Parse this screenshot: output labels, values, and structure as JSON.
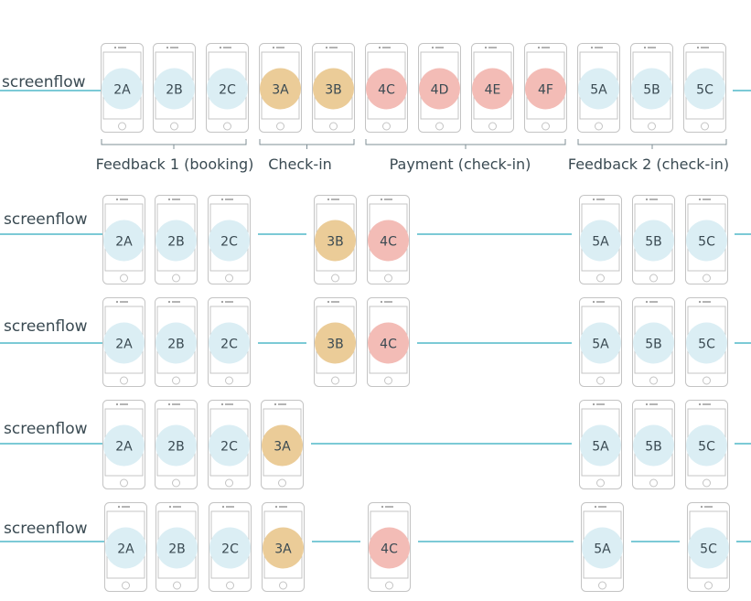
{
  "colors": {
    "line": "#2eaabd",
    "phone_stroke": "#c4c4c4",
    "bracket": "#7f8f96",
    "text": "#3a4a52",
    "feedback": "#dbeef4",
    "checkin": "#ebcc98",
    "payment": "#f3bcb6"
  },
  "groups": [
    {
      "label": "Feedback 1 (booking)"
    },
    {
      "label": "Check-in"
    },
    {
      "label": "Payment (check-in)"
    },
    {
      "label": "Feedback 2 (check-in)"
    }
  ],
  "rows": [
    {
      "label": "screenflow",
      "screens": [
        {
          "id": "2A",
          "type": "feedback"
        },
        {
          "id": "2B",
          "type": "feedback"
        },
        {
          "id": "2C",
          "type": "feedback"
        },
        {
          "id": "3A",
          "type": "checkin"
        },
        {
          "id": "3B",
          "type": "checkin"
        },
        {
          "id": "4C",
          "type": "payment"
        },
        {
          "id": "4D",
          "type": "payment"
        },
        {
          "id": "4E",
          "type": "payment"
        },
        {
          "id": "4F",
          "type": "payment"
        },
        {
          "id": "5A",
          "type": "feedback"
        },
        {
          "id": "5B",
          "type": "feedback"
        },
        {
          "id": "5C",
          "type": "feedback"
        }
      ]
    },
    {
      "label": "screenflow",
      "screens": [
        {
          "id": "2A",
          "type": "feedback"
        },
        {
          "id": "2B",
          "type": "feedback"
        },
        {
          "id": "2C",
          "type": "feedback"
        },
        {
          "id": "3B",
          "type": "checkin"
        },
        {
          "id": "4C",
          "type": "payment"
        },
        {
          "id": "5A",
          "type": "feedback"
        },
        {
          "id": "5B",
          "type": "feedback"
        },
        {
          "id": "5C",
          "type": "feedback"
        }
      ]
    },
    {
      "label": "screenflow",
      "screens": [
        {
          "id": "2A",
          "type": "feedback"
        },
        {
          "id": "2B",
          "type": "feedback"
        },
        {
          "id": "2C",
          "type": "feedback"
        },
        {
          "id": "3B",
          "type": "checkin"
        },
        {
          "id": "4C",
          "type": "payment"
        },
        {
          "id": "5A",
          "type": "feedback"
        },
        {
          "id": "5B",
          "type": "feedback"
        },
        {
          "id": "5C",
          "type": "feedback"
        }
      ]
    },
    {
      "label": "screenflow",
      "screens": [
        {
          "id": "2A",
          "type": "feedback"
        },
        {
          "id": "2B",
          "type": "feedback"
        },
        {
          "id": "2C",
          "type": "feedback"
        },
        {
          "id": "3A",
          "type": "checkin"
        },
        {
          "id": "5A",
          "type": "feedback"
        },
        {
          "id": "5B",
          "type": "feedback"
        },
        {
          "id": "5C",
          "type": "feedback"
        }
      ]
    },
    {
      "label": "screenflow",
      "screens": [
        {
          "id": "2A",
          "type": "feedback"
        },
        {
          "id": "2B",
          "type": "feedback"
        },
        {
          "id": "2C",
          "type": "feedback"
        },
        {
          "id": "3A",
          "type": "checkin"
        },
        {
          "id": "4C",
          "type": "payment"
        },
        {
          "id": "5A",
          "type": "feedback"
        },
        {
          "id": "5C",
          "type": "feedback"
        }
      ]
    }
  ]
}
